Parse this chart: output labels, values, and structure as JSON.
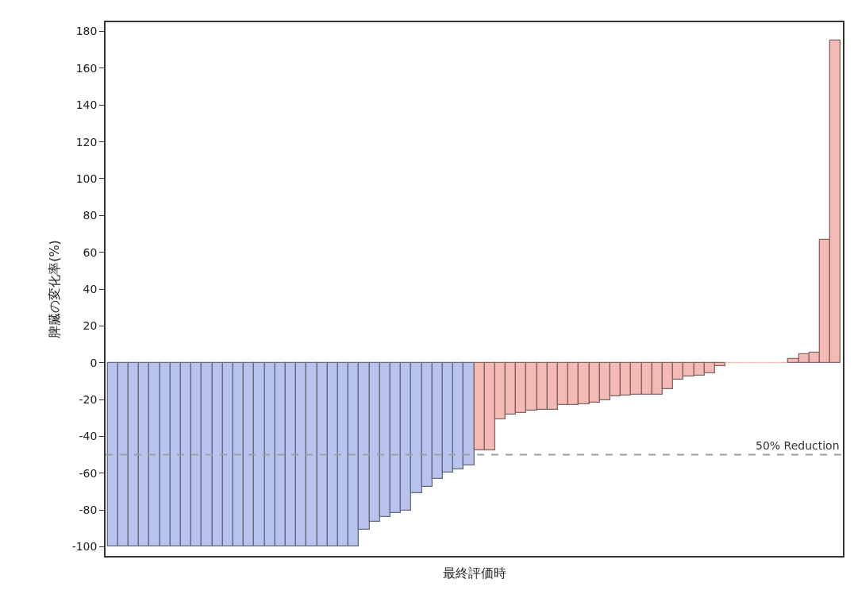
{
  "chart_data": {
    "type": "bar",
    "xlabel": "最終評価時",
    "ylabel": "脾臓の変化率(%)",
    "categories": [
      null,
      null,
      null,
      null,
      null,
      null,
      null,
      null,
      null,
      null,
      null,
      null,
      null,
      null,
      null,
      null,
      null,
      null,
      null,
      null,
      null,
      null,
      null,
      null,
      null,
      null,
      null,
      null,
      null,
      null,
      null,
      null,
      null,
      null,
      null,
      null,
      null,
      null,
      null,
      null,
      null,
      null,
      null,
      null,
      null,
      null,
      null,
      null,
      null,
      null,
      null,
      null,
      null,
      null,
      null,
      null,
      null,
      null,
      null,
      null,
      null,
      null,
      null,
      null,
      null,
      null,
      null,
      null,
      null,
      null
    ],
    "values": [
      -100,
      -100,
      -100,
      -100,
      -100,
      -100,
      -100,
      -100,
      -100,
      -100,
      -100,
      -100,
      -100,
      -100,
      -100,
      -100,
      -100,
      -100,
      -100,
      -100,
      -100,
      -100,
      -100,
      -100,
      -90.7,
      -86.4,
      -83.8,
      -81.7,
      -80.2,
      -70.9,
      -67.3,
      -63.2,
      -59.6,
      -57.9,
      -56,
      -47.5,
      -47.5,
      -30.8,
      -28,
      -27.2,
      -26.2,
      -25.8,
      -25.8,
      -23,
      -22.8,
      -22.4,
      -21.7,
      -20.4,
      -18.3,
      -17.9,
      -17.3,
      -17.3,
      -17.3,
      -14.4,
      -9.2,
      -7.5,
      -7.1,
      -5.8,
      -2,
      0,
      0,
      0,
      0,
      0,
      0,
      1.9,
      4.8,
      5.5,
      66.7,
      175.2
    ],
    "colors": [
      "#b8c4ee",
      "#b8c4ee",
      "#b8c4ee",
      "#b8c4ee",
      "#b8c4ee",
      "#b8c4ee",
      "#b8c4ee",
      "#b8c4ee",
      "#b8c4ee",
      "#b8c4ee",
      "#b8c4ee",
      "#b8c4ee",
      "#b8c4ee",
      "#b8c4ee",
      "#b8c4ee",
      "#b8c4ee",
      "#b8c4ee",
      "#b8c4ee",
      "#b8c4ee",
      "#b8c4ee",
      "#b8c4ee",
      "#b8c4ee",
      "#b8c4ee",
      "#b8c4ee",
      "#b8c4ee",
      "#b8c4ee",
      "#b8c4ee",
      "#b8c4ee",
      "#b8c4ee",
      "#b8c4ee",
      "#b8c4ee",
      "#b8c4ee",
      "#b8c4ee",
      "#b8c4ee",
      "#b8c4ee",
      "#f4bab6",
      "#f4bab6",
      "#f4bab6",
      "#f4bab6",
      "#f4bab6",
      "#f4bab6",
      "#f4bab6",
      "#f4bab6",
      "#f4bab6",
      "#f4bab6",
      "#f4bab6",
      "#f4bab6",
      "#f4bab6",
      "#f4bab6",
      "#f4bab6",
      "#f4bab6",
      "#f4bab6",
      "#f4bab6",
      "#f4bab6",
      "#f4bab6",
      "#f4bab6",
      "#f4bab6",
      "#f4bab6",
      "#f4bab6",
      "#f4bab6",
      "#f4bab6",
      "#f4bab6",
      "#f4bab6",
      "#f4bab6",
      "#f4bab6",
      "#f4bab6",
      "#f4bab6",
      "#f4bab6",
      "#f4bab6",
      "#f4bab6"
    ],
    "ylim": [
      -105,
      185
    ],
    "yticks": [
      -100,
      -80,
      -60,
      -40,
      -20,
      0,
      20,
      40,
      60,
      80,
      100,
      120,
      140,
      160,
      180
    ],
    "ref_lines": [
      {
        "axis": "y",
        "value": -50,
        "label": "50% Reduction",
        "color": "#a0a0a0",
        "line_style": "dashed"
      }
    ],
    "tick_labels": "y",
    "grid": false
  }
}
